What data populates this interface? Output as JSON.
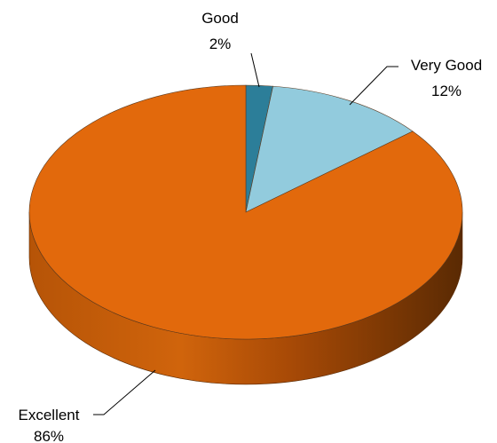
{
  "chart_data": {
    "type": "pie",
    "style": "3d",
    "title": "",
    "categories": [
      "Good",
      "Very Good",
      "Excellent"
    ],
    "values": [
      2,
      12,
      86
    ],
    "value_labels": [
      "2%",
      "12%",
      "86%"
    ],
    "colors": [
      "#2c7e99",
      "#92cbdd",
      "#e2690c"
    ],
    "side_colors": [
      "#1f5d72",
      "#6a9fb0",
      "#8f3f07"
    ],
    "legend": "none"
  }
}
